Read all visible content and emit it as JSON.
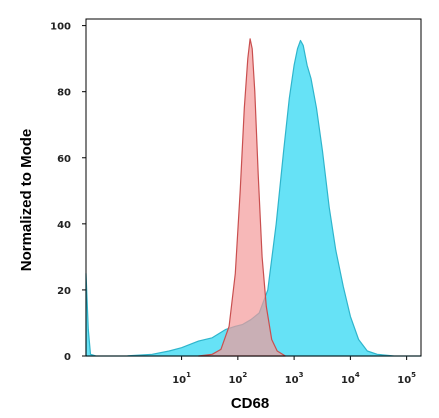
{
  "chart_data": {
    "type": "area",
    "title": "",
    "xlabel": "CD68",
    "ylabel": "Normalized to Mode",
    "x_scale": "log",
    "xlim": [
      0.2,
      180000
    ],
    "ylim": [
      0,
      102
    ],
    "y_ticks": [
      "0",
      "20",
      "40",
      "60",
      "80",
      "100"
    ],
    "x_ticks": [
      {
        "value": 10,
        "base": "10",
        "exp": "1"
      },
      {
        "value": 100,
        "base": "10",
        "exp": "2"
      },
      {
        "value": 1000,
        "base": "10",
        "exp": "3"
      },
      {
        "value": 10000,
        "base": "10",
        "exp": "4"
      },
      {
        "value": 100000,
        "base": "10",
        "exp": "5"
      }
    ],
    "series": [
      {
        "color": "#5EE0F5",
        "stroke": "#2FB5CC",
        "points": [
          [
            0.2,
            25
          ],
          [
            0.22,
            8
          ],
          [
            0.24,
            0.5
          ],
          [
            0.3,
            0
          ],
          [
            1,
            0
          ],
          [
            3,
            0.5
          ],
          [
            6,
            1.5
          ],
          [
            10,
            2.5
          ],
          [
            20,
            4.5
          ],
          [
            35,
            5.5
          ],
          [
            60,
            8
          ],
          [
            90,
            9
          ],
          [
            120,
            9.5
          ],
          [
            170,
            11
          ],
          [
            240,
            13
          ],
          [
            340,
            20
          ],
          [
            480,
            40
          ],
          [
            650,
            62
          ],
          [
            820,
            78
          ],
          [
            1000,
            88
          ],
          [
            1150,
            93
          ],
          [
            1300,
            95.5
          ],
          [
            1450,
            94
          ],
          [
            1700,
            88
          ],
          [
            2000,
            84
          ],
          [
            2500,
            75
          ],
          [
            3200,
            62
          ],
          [
            4200,
            45
          ],
          [
            5500,
            32
          ],
          [
            7500,
            21
          ],
          [
            10000,
            12
          ],
          [
            14000,
            5
          ],
          [
            20000,
            1.5
          ],
          [
            30000,
            0.5
          ],
          [
            60000,
            0
          ],
          [
            180000,
            0
          ]
        ]
      },
      {
        "color": "#F49A9A",
        "stroke": "#C94F4F",
        "points": [
          [
            20,
            0
          ],
          [
            35,
            0.5
          ],
          [
            50,
            2
          ],
          [
            70,
            9
          ],
          [
            90,
            25
          ],
          [
            110,
            50
          ],
          [
            130,
            75
          ],
          [
            150,
            90
          ],
          [
            165,
            96
          ],
          [
            180,
            93
          ],
          [
            200,
            80
          ],
          [
            230,
            55
          ],
          [
            270,
            30
          ],
          [
            320,
            15
          ],
          [
            400,
            5
          ],
          [
            500,
            1.5
          ],
          [
            700,
            0
          ]
        ]
      }
    ]
  }
}
